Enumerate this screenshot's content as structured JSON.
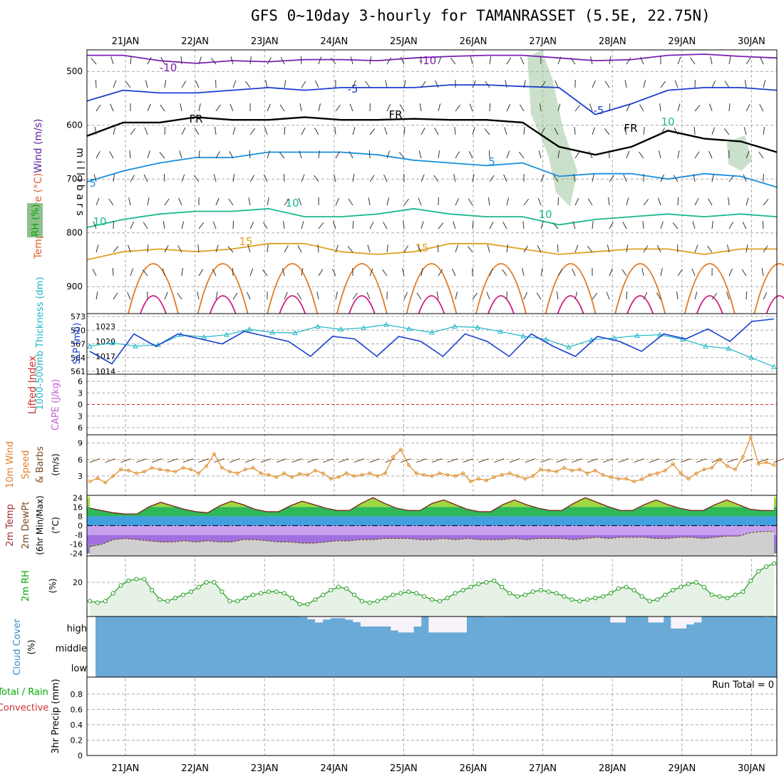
{
  "title": "GFS 0~10day 3-hourly for TAMANRASSET (5.5E, 22.75N)",
  "dates": [
    "21JAN",
    "22JAN",
    "23JAN",
    "24JAN",
    "25JAN",
    "26JAN",
    "27JAN",
    "28JAN",
    "29JAN",
    "30JAN"
  ],
  "run_total": "Run Total = 0",
  "colors": {
    "temperature_minus10": "#7a1fb4",
    "temperature_minus5": "#1a3fd0",
    "temperature_5": "#1a8fe0",
    "temperature_10": "#1ab890",
    "temperature_15": "#e0a020",
    "temperature_20": "#e07820",
    "temperature_25": "#d01880",
    "rh": "#2aa02a",
    "cloud": "#6aaad6",
    "thickness": "#20b8c8",
    "slp": "#1a3fd0",
    "wind10m": "#e09030"
  },
  "chart_data": [
    {
      "type": "line",
      "panel": "upper-air",
      "ylabel": "m i l l i b a r s",
      "side_labels": [
        "Temperature (°C)",
        "Wind (m/s)",
        "RH (%)"
      ],
      "yticks": [
        500,
        600,
        700,
        800,
        900
      ],
      "ylim": [
        460,
        950
      ],
      "contour_labels": [
        "-10",
        "-10",
        "-5",
        "-5",
        "FR",
        "FR",
        "FR",
        "5",
        "5",
        "10",
        "10",
        "10",
        "15",
        "15",
        "10"
      ],
      "series": [
        {
          "name": "-10",
          "values": [
            470,
            470,
            480,
            485,
            480,
            482,
            478,
            478,
            480,
            475,
            472,
            470,
            470,
            475,
            480,
            478,
            470,
            468,
            472,
            475
          ]
        },
        {
          "name": "-5",
          "values": [
            555,
            535,
            540,
            540,
            535,
            530,
            535,
            530,
            530,
            530,
            525,
            525,
            528,
            530,
            580,
            560,
            535,
            530,
            530,
            535
          ]
        },
        {
          "name": "FR",
          "values": [
            620,
            595,
            595,
            585,
            590,
            590,
            585,
            590,
            590,
            588,
            590,
            590,
            595,
            640,
            655,
            640,
            610,
            625,
            630,
            650
          ]
        },
        {
          "name": "5",
          "values": [
            705,
            685,
            670,
            660,
            660,
            650,
            650,
            650,
            655,
            665,
            670,
            675,
            670,
            695,
            690,
            690,
            700,
            690,
            695,
            715
          ]
        },
        {
          "name": "10",
          "values": [
            790,
            775,
            765,
            760,
            760,
            755,
            770,
            770,
            765,
            755,
            765,
            770,
            770,
            785,
            775,
            770,
            765,
            770,
            765,
            770
          ]
        },
        {
          "name": "15",
          "values": [
            850,
            835,
            830,
            835,
            830,
            820,
            820,
            835,
            840,
            835,
            820,
            820,
            830,
            840,
            835,
            830,
            830,
            840,
            830,
            830
          ]
        }
      ]
    },
    {
      "type": "line",
      "panel": "thickness-slp",
      "ylabel": "1000-500mb Thickness (dm)",
      "ylabel2": "SLP (mb)",
      "yticks_left": [
        561,
        564,
        567,
        570,
        573
      ],
      "yticks_right": [
        1014,
        1017,
        1020,
        1023
      ],
      "series": [
        {
          "name": "Thickness",
          "values": [
            566.5,
            567.2,
            566.5,
            566.8,
            569.0,
            568.5,
            569.0,
            570.2,
            569.5,
            569.4,
            570.8,
            570.2,
            570.5,
            571.2,
            570.3,
            569.5,
            570.8,
            570.6,
            569.7,
            568.7,
            568.0,
            566.3,
            567.9,
            568.3,
            568.8,
            569.0,
            568.0,
            566.5,
            566.0,
            564.0,
            562.0
          ]
        },
        {
          "name": "SLP",
          "values": [
            1018.0,
            1015.5,
            1021.5,
            1019.0,
            1021.5,
            1020.5,
            1019.5,
            1022.0,
            1021.0,
            1020.0,
            1017.0,
            1021.0,
            1020.5,
            1017.0,
            1021.0,
            1020.0,
            1017.0,
            1021.5,
            1020.0,
            1017.0,
            1021.5,
            1019.0,
            1017.0,
            1021.0,
            1020.0,
            1018.0,
            1021.5,
            1020.5,
            1022.5,
            1020.0,
            1024.0,
            1024.5
          ]
        }
      ]
    },
    {
      "type": "line",
      "panel": "lifted-index-cape",
      "ylabel": "Lifted Index",
      "ylabel2": "CAPE (J/kg)",
      "yticks": [
        6,
        3,
        0,
        -3,
        -6
      ],
      "series": [
        {
          "name": "Lifted Index",
          "values": []
        }
      ]
    },
    {
      "type": "line",
      "panel": "wind10m",
      "ylabel": "10m Wind Speed & Barbs",
      "unit": "(m/s)",
      "yticks": [
        3,
        6,
        9
      ],
      "ylim": [
        0,
        10
      ],
      "series": [
        {
          "name": "Speed",
          "values": [
            2.0,
            2.6,
            1.8,
            3.0,
            4.2,
            4.0,
            3.5,
            3.8,
            4.5,
            4.2,
            4.0,
            3.8,
            4.5,
            4.2,
            3.5,
            4.8,
            7.0,
            4.5,
            3.8,
            3.5,
            4.2,
            4.5,
            3.5,
            3.2,
            2.8,
            3.5,
            2.8,
            3.4,
            3.2,
            4.0,
            3.5,
            2.5,
            2.8,
            3.5,
            3.0,
            3.2,
            3.5,
            3.0,
            3.5,
            6.5,
            7.8,
            5.0,
            3.5,
            3.2,
            3.0,
            3.5,
            3.2,
            3.0,
            3.5,
            2.0,
            2.5,
            2.2,
            2.8,
            3.2,
            3.5,
            3.0,
            2.5,
            3.0,
            4.2,
            4.0,
            3.8,
            4.5,
            4.0,
            4.2,
            3.5,
            4.0,
            3.2,
            2.8,
            2.5,
            2.5,
            2.0,
            2.4,
            3.2,
            3.5,
            4.0,
            5.2,
            3.5,
            2.5,
            3.5,
            4.2,
            4.5,
            6.0,
            4.8,
            4.2,
            6.5,
            10.0,
            5.2,
            5.5,
            5.0
          ]
        }
      ]
    },
    {
      "type": "area",
      "panel": "temp-dewpt",
      "ylabel": "2m Temp",
      "ylabel2": "2m DewPt",
      "ylabel3": "(6hr Min/Max)",
      "unit": "(°C)",
      "yticks": [
        24,
        16,
        8,
        0,
        -8,
        -16,
        -24
      ],
      "ylim": [
        -26,
        26
      ],
      "series": [
        {
          "name": "2m Temp",
          "values": [
            15,
            13,
            11,
            10,
            10,
            16,
            20,
            17,
            14,
            12,
            11,
            17,
            21,
            18,
            14,
            12,
            12,
            17,
            21,
            18,
            15,
            13,
            13,
            19,
            24,
            19,
            15,
            13,
            13,
            19,
            22,
            18,
            14,
            12,
            12,
            18,
            22,
            18,
            15,
            13,
            13,
            19,
            24,
            20,
            16,
            13,
            13,
            18,
            22,
            18,
            15,
            13,
            13,
            18,
            22,
            18,
            14,
            13,
            13
          ]
        },
        {
          "name": "2m DewPt",
          "values": [
            -18,
            -16,
            -12,
            -11,
            -12,
            -13,
            -14,
            -14,
            -13,
            -14,
            -13,
            -14,
            -14,
            -12,
            -12,
            -13,
            -14,
            -14,
            -15,
            -15,
            -14,
            -13,
            -13,
            -12,
            -12,
            -11,
            -11,
            -11,
            -12,
            -12,
            -11,
            -12,
            -11,
            -12,
            -12,
            -12,
            -11,
            -12,
            -11,
            -11,
            -11,
            -12,
            -11,
            -10,
            -11,
            -10,
            -10,
            -10,
            -11,
            -11,
            -10,
            -10,
            -11,
            -10,
            -9,
            -9,
            -6,
            -5,
            -5
          ]
        }
      ]
    },
    {
      "type": "area",
      "panel": "rh2m",
      "ylabel": "2m RH",
      "unit": "(%)",
      "yticks": [
        20
      ],
      "series": [
        {
          "name": "2m RH",
          "values": [
            8,
            7,
            8,
            13,
            18,
            21,
            22,
            22,
            15,
            9,
            8,
            10,
            12,
            14,
            17,
            20,
            20,
            14,
            8,
            8,
            10,
            12,
            13,
            14,
            14,
            13,
            10,
            6,
            6,
            9,
            12,
            15,
            17,
            16,
            12,
            8,
            7,
            8,
            10,
            12,
            13,
            14,
            13,
            11,
            9,
            8,
            10,
            13,
            15,
            17,
            19,
            20,
            21,
            17,
            13,
            11,
            12,
            14,
            15,
            14,
            13,
            11,
            9,
            8,
            9,
            10,
            11,
            13,
            16,
            17,
            15,
            11,
            8,
            9,
            12,
            15,
            17,
            19,
            20,
            17,
            12,
            11,
            10,
            12,
            14,
            21,
            27,
            30,
            32
          ]
        }
      ]
    },
    {
      "type": "area",
      "panel": "cloud-cover",
      "ylabel": "Cloud Cover",
      "unit": "(%)",
      "levels": [
        "high",
        "middle",
        "low"
      ],
      "series": [
        {
          "name": "high",
          "values": [
            0,
            0,
            0,
            0,
            0,
            0,
            0,
            0,
            0,
            0,
            0,
            0,
            0,
            0,
            0,
            0,
            0,
            0,
            0,
            0,
            0,
            0,
            0,
            0,
            0,
            0,
            0,
            3,
            14,
            30,
            15,
            8,
            8,
            16,
            28,
            50,
            50,
            50,
            50,
            70,
            80,
            80,
            50,
            0,
            80,
            80,
            80,
            80,
            80,
            0,
            0,
            3,
            3,
            3,
            0,
            0,
            0,
            0,
            0,
            0,
            0,
            0,
            0,
            0,
            0,
            0,
            0,
            0,
            30,
            30,
            0,
            0,
            0,
            30,
            30,
            0,
            60,
            60,
            40,
            30,
            0,
            0,
            0,
            0,
            0,
            0,
            0,
            0,
            3,
            0
          ]
        }
      ]
    },
    {
      "type": "bar",
      "panel": "precip",
      "ylabel": "3hr Precip (mm)",
      "side_labels": [
        "Total / Rain",
        "Convective"
      ],
      "yticks": [
        0,
        0.2,
        0.4,
        0.6,
        0.8
      ],
      "ylim": [
        0,
        1
      ],
      "series": [
        {
          "name": "Total",
          "values": []
        }
      ]
    }
  ]
}
